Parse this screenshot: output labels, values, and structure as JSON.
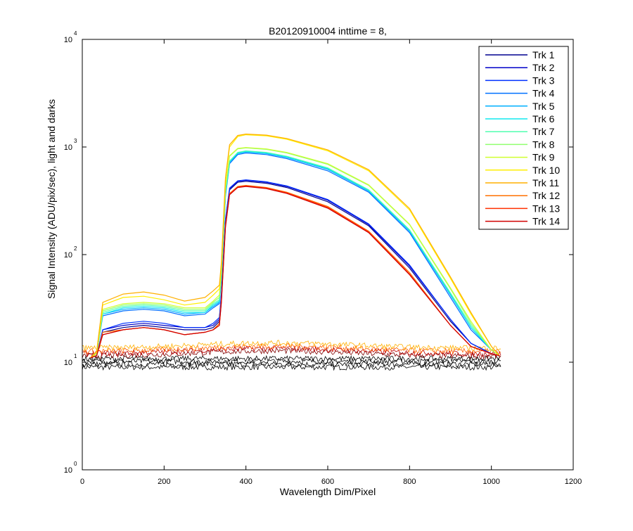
{
  "chart_data": {
    "type": "line",
    "title": "B20120910004 inttime = 8,",
    "xlabel": "Wavelength Dim/Pixel",
    "ylabel": "Signal Intensity (ADU/pix/sec), light and darks",
    "xlim": [
      0,
      1200
    ],
    "ylim": [
      1,
      10000
    ],
    "yscale": "log",
    "grid": false,
    "legend_position": "top-right",
    "x_ticks": [
      "0",
      "200",
      "400",
      "600",
      "800",
      "1000",
      "1200"
    ],
    "y_ticks": [
      {
        "base": "10",
        "exp": "0",
        "value": 1
      },
      {
        "base": "10",
        "exp": "1",
        "value": 10
      },
      {
        "base": "10",
        "exp": "2",
        "value": 100
      },
      {
        "base": "10",
        "exp": "3",
        "value": 1000
      },
      {
        "base": "10",
        "exp": "4",
        "value": 10000
      }
    ],
    "x": [
      0,
      20,
      35,
      50,
      100,
      150,
      200,
      250,
      300,
      320,
      335,
      340,
      350,
      360,
      380,
      400,
      450,
      500,
      600,
      700,
      800,
      900,
      950,
      1000,
      1020
    ],
    "series": [
      {
        "name": "Trk 1",
        "color": "#00008f",
        "values": [
          null,
          11,
          11.5,
          19,
          21,
          22,
          21,
          20,
          20,
          21,
          24,
          40,
          200,
          400,
          470,
          480,
          460,
          420,
          310,
          185,
          75,
          24,
          15,
          12,
          11.5
        ]
      },
      {
        "name": "Trk 2",
        "color": "#0000c8",
        "values": [
          null,
          11,
          11.5,
          20,
          22,
          23,
          22,
          21,
          21,
          22,
          25,
          42,
          210,
          410,
          480,
          490,
          470,
          430,
          320,
          190,
          78,
          25,
          15,
          12,
          11.5
        ]
      },
      {
        "name": "Trk 3",
        "color": "#0030ff",
        "values": [
          null,
          11,
          11.5,
          20,
          23,
          24,
          23,
          21,
          21,
          23,
          26,
          44,
          215,
          415,
          485,
          495,
          475,
          435,
          325,
          193,
          80,
          25,
          15,
          12,
          11.5
        ]
      },
      {
        "name": "Trk 4",
        "color": "#0070ff",
        "values": [
          null,
          11,
          12,
          27,
          30,
          31,
          30,
          27,
          28,
          32,
          35,
          60,
          350,
          700,
          850,
          880,
          850,
          780,
          600,
          380,
          160,
          40,
          20,
          13,
          11.5
        ]
      },
      {
        "name": "Trk 5",
        "color": "#00b0ff",
        "values": [
          null,
          11,
          12,
          28,
          31,
          32,
          31,
          28,
          29,
          33,
          36,
          62,
          360,
          720,
          870,
          900,
          870,
          800,
          620,
          390,
          165,
          42,
          21,
          13,
          11.5
        ]
      },
      {
        "name": "Trk 6",
        "color": "#10e8ef",
        "values": [
          null,
          11,
          12,
          28,
          32,
          33,
          32,
          29,
          29,
          34,
          37,
          64,
          370,
          730,
          880,
          910,
          880,
          810,
          630,
          395,
          168,
          43,
          21,
          13,
          11.5
        ]
      },
      {
        "name": "Trk 7",
        "color": "#50ffaf",
        "values": [
          null,
          11,
          12,
          29,
          33,
          34,
          33,
          30,
          30,
          35,
          38,
          66,
          380,
          740,
          890,
          920,
          890,
          820,
          640,
          400,
          170,
          44,
          22,
          13,
          11.5
        ]
      },
      {
        "name": "Trk 8",
        "color": "#90ff6f",
        "values": [
          null,
          11,
          12,
          30,
          34,
          35,
          34,
          31,
          31,
          36,
          40,
          70,
          420,
          820,
          960,
          980,
          950,
          880,
          690,
          440,
          190,
          48,
          23,
          13,
          11.5
        ]
      },
      {
        "name": "Trk 9",
        "color": "#cfff30",
        "values": [
          null,
          11,
          12,
          31,
          35,
          36,
          35,
          32,
          32,
          37,
          42,
          72,
          430,
          830,
          970,
          990,
          960,
          890,
          700,
          445,
          192,
          49,
          24,
          13,
          11.5
        ]
      },
      {
        "name": "Trk 10",
        "color": "#ffef00",
        "values": [
          null,
          11,
          12.5,
          34,
          40,
          41,
          38,
          34,
          36,
          42,
          48,
          80,
          500,
          1000,
          1250,
          1300,
          1270,
          1180,
          920,
          600,
          260,
          60,
          28,
          14,
          11.5
        ]
      },
      {
        "name": "Trk 11",
        "color": "#ffb000",
        "values": [
          null,
          11,
          12.5,
          36,
          43,
          45,
          42,
          37,
          40,
          46,
          52,
          85,
          520,
          1050,
          1280,
          1320,
          1290,
          1200,
          940,
          615,
          268,
          62,
          29,
          14,
          11.5
        ]
      },
      {
        "name": "Trk 12",
        "color": "#ff7000",
        "values": [
          null,
          11,
          11.5,
          19,
          20,
          21,
          20,
          18,
          19,
          20,
          23,
          38,
          190,
          370,
          430,
          440,
          420,
          380,
          280,
          165,
          68,
          22,
          14,
          12,
          11.5
        ]
      },
      {
        "name": "Trk 13",
        "color": "#ff3000",
        "values": [
          null,
          11,
          11.5,
          18,
          20,
          21,
          20,
          18,
          19,
          20,
          22,
          37,
          185,
          365,
          425,
          435,
          415,
          375,
          275,
          162,
          66,
          22,
          14,
          12,
          11.5
        ]
      },
      {
        "name": "Trk 14",
        "color": "#d00000",
        "values": [
          null,
          11,
          11.5,
          18,
          20,
          21,
          20,
          18,
          19,
          20,
          22,
          36,
          180,
          360,
          420,
          430,
          410,
          370,
          270,
          160,
          65,
          22,
          14,
          12,
          11.5
        ]
      }
    ],
    "darks": {
      "x_start": 0,
      "x_end": 1023,
      "color_floor": "#000000",
      "level_min": 9,
      "level_max": 13.5
    }
  }
}
